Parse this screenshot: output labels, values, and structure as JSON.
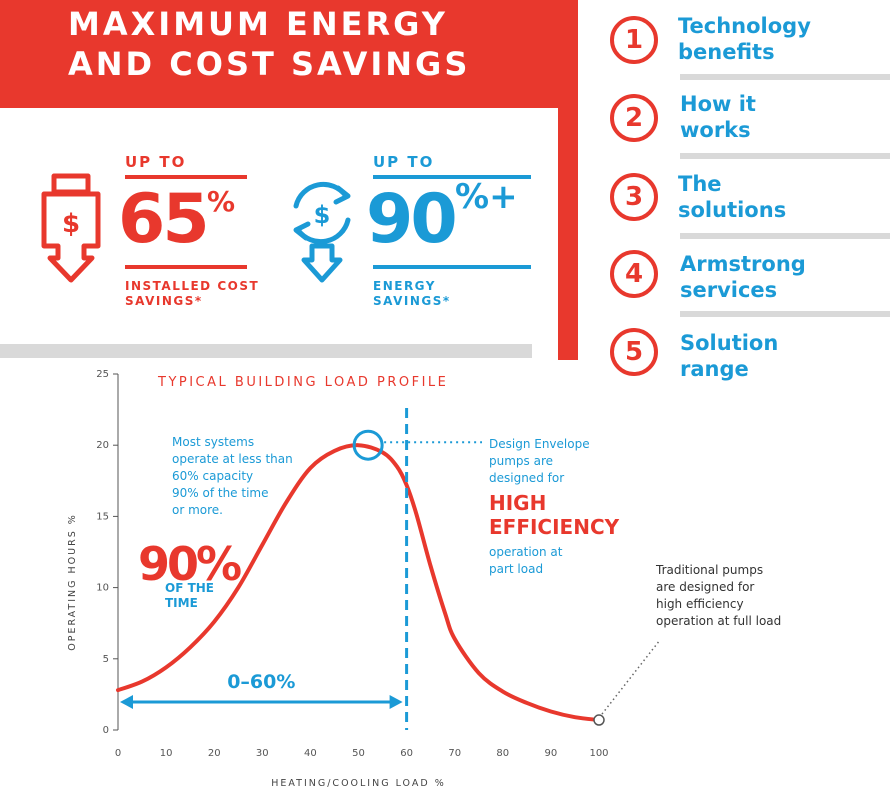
{
  "header": {
    "title": "MAXIMUM ENERGY AND COST SAVINGS"
  },
  "savings": [
    {
      "up_to": "UP TO",
      "value": "65",
      "suffix": "%",
      "caption_line1": "INSTALLED COST",
      "caption_line2": "SAVINGS*",
      "color": "#e8382d",
      "icon": "dollar-box-down-arrow-icon"
    },
    {
      "up_to": "UP TO",
      "value": "90",
      "suffix": "%+",
      "caption_line1": "ENERGY",
      "caption_line2": "SAVINGS*",
      "color": "#1b9ad6",
      "icon": "dollar-cycle-down-arrow-icon"
    }
  ],
  "nav": {
    "items": [
      {
        "number": "1",
        "label_line1": "Technology",
        "label_line2": "benefits"
      },
      {
        "number": "2",
        "label_line1": "How it",
        "label_line2": "works"
      },
      {
        "number": "3",
        "label_line1": "The",
        "label_line2": "solutions"
      },
      {
        "number": "4",
        "label_line1": "Armstrong",
        "label_line2": "services"
      },
      {
        "number": "5",
        "label_line1": "Solution",
        "label_line2": "range"
      }
    ]
  },
  "colors": {
    "red": "#e8382d",
    "blue": "#1b9ad6",
    "grey": "#d9d9d9",
    "text": "#333333"
  },
  "chart_data": {
    "type": "line",
    "title": "TYPICAL BUILDING LOAD PROFILE",
    "xlabel": "HEATING/COOLING LOAD %",
    "ylabel": "OPERATING HOURS %",
    "xlim": [
      0,
      100
    ],
    "ylim": [
      0,
      25
    ],
    "x_ticks": [
      0,
      10,
      20,
      30,
      40,
      50,
      60,
      70,
      80,
      90,
      100
    ],
    "y_ticks": [
      0,
      5,
      10,
      15,
      20,
      25
    ],
    "grid": false,
    "series": [
      {
        "color": "#e8382d",
        "x": [
          0,
          5,
          10,
          15,
          20,
          25,
          30,
          35,
          40,
          45,
          50,
          55,
          58,
          60,
          62,
          65,
          68,
          70,
          75,
          80,
          85,
          90,
          95,
          100
        ],
        "y": [
          2.8,
          3.4,
          4.4,
          5.8,
          7.6,
          10,
          13,
          16,
          18.4,
          19.6,
          20,
          19.5,
          18.5,
          17.2,
          15.2,
          11.5,
          8.2,
          6.4,
          4,
          2.7,
          1.9,
          1.3,
          0.9,
          0.7
        ]
      }
    ],
    "annotations": {
      "left_text": [
        "Most systems",
        "operate at less than",
        "60% capacity",
        "90% of the time",
        "or more."
      ],
      "big_percent": "90%",
      "big_percent_caption": [
        "OF THE",
        "TIME"
      ],
      "range_label": "0–60%",
      "range": [
        0,
        60
      ],
      "vline_x": 60,
      "peak_marker": [
        52,
        20
      ],
      "design_text_top": [
        "Design Envelope",
        "pumps are",
        "designed for"
      ],
      "design_text_emph": [
        "HIGH",
        "EFFICIENCY"
      ],
      "design_text_bottom": [
        "operation at",
        "part load"
      ],
      "traditional_text": [
        "Traditional pumps",
        "are designed for",
        "high efficiency",
        "operation at full load"
      ],
      "traditional_marker": [
        100,
        0.7
      ]
    }
  }
}
